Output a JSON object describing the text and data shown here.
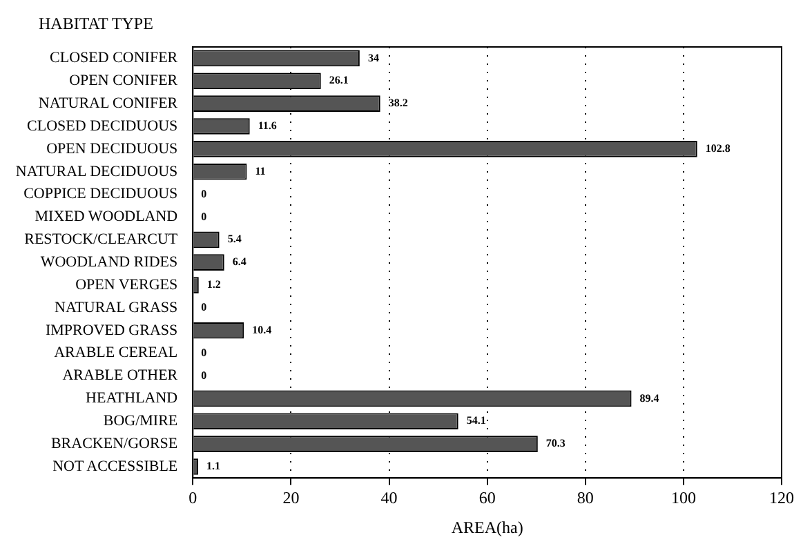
{
  "chart_data": {
    "type": "bar",
    "orientation": "horizontal",
    "ylabel": "HABITAT TYPE",
    "xlabel": "AREA(ha)",
    "categories": [
      "CLOSED CONIFER",
      "OPEN CONIFER",
      "NATURAL CONIFER",
      "CLOSED DECIDUOUS",
      "OPEN DECIDUOUS",
      "NATURAL DECIDUOUS",
      "COPPICE DECIDUOUS",
      "MIXED WOODLAND",
      "RESTOCK/CLEARCUT",
      "WOODLAND RIDES",
      "OPEN VERGES",
      "NATURAL GRASS",
      "IMPROVED GRASS",
      "ARABLE CEREAL",
      "ARABLE OTHER",
      "HEATHLAND",
      "BOG/MIRE",
      "BRACKEN/GORSE",
      "NOT ACCESSIBLE"
    ],
    "values": [
      34,
      26.1,
      38.2,
      11.6,
      102.8,
      11,
      0,
      0,
      5.4,
      6.4,
      1.2,
      0,
      10.4,
      0,
      0,
      89.4,
      54.1,
      70.3,
      1.1
    ],
    "color": "#555555",
    "xlim": [
      0,
      120
    ],
    "xticks": [
      0,
      20,
      40,
      60,
      80,
      100,
      120
    ],
    "grid": "x",
    "data_labels": true,
    "legend": false
  }
}
